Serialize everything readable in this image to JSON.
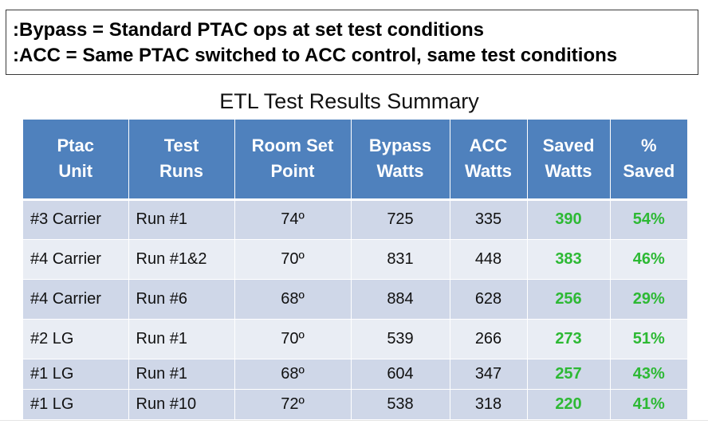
{
  "legend": {
    "line1": ":Bypass = Standard PTAC ops at set test conditions",
    "line2": ":ACC = Same PTAC switched to ACC control, same test conditions"
  },
  "title": "ETL Test Results Summary",
  "table": {
    "headers": [
      [
        "Ptac",
        "Unit"
      ],
      [
        "Test",
        "Runs"
      ],
      [
        "Room Set",
        "Point"
      ],
      [
        "Bypass",
        "Watts"
      ],
      [
        "ACC",
        "Watts"
      ],
      [
        "Saved",
        "Watts"
      ],
      [
        "%",
        "Saved"
      ]
    ],
    "rows": [
      {
        "unit": "#3 Carrier",
        "runs": "Run #1",
        "setpoint": "74º",
        "bypass": "725",
        "acc": "335",
        "saved": "390",
        "pct": "54%"
      },
      {
        "unit": "#4 Carrier",
        "runs": "Run #1&2",
        "setpoint": "70º",
        "bypass": "831",
        "acc": "448",
        "saved": "383",
        "pct": "46%"
      },
      {
        "unit": "#4 Carrier",
        "runs": "Run #6",
        "setpoint": "68º",
        "bypass": "884",
        "acc": "628",
        "saved": "256",
        "pct": "29%"
      },
      {
        "unit": "#2 LG",
        "runs": "Run #1",
        "setpoint": "70º",
        "bypass": "539",
        "acc": "266",
        "saved": "273",
        "pct": "51%"
      },
      {
        "unit": "#1 LG",
        "runs": "Run #1",
        "setpoint": "68º",
        "bypass": "604",
        "acc": "347",
        "saved": "257",
        "pct": "43%"
      },
      {
        "unit": "#1 LG",
        "runs": "Run #10",
        "setpoint": "72º",
        "bypass": "538",
        "acc": "318",
        "saved": "220",
        "pct": "41%"
      }
    ]
  },
  "colors": {
    "header_bg": "#4f81bd",
    "row_dark": "#cfd7e8",
    "row_light": "#e9edf4",
    "saved_green": "#2db934"
  }
}
